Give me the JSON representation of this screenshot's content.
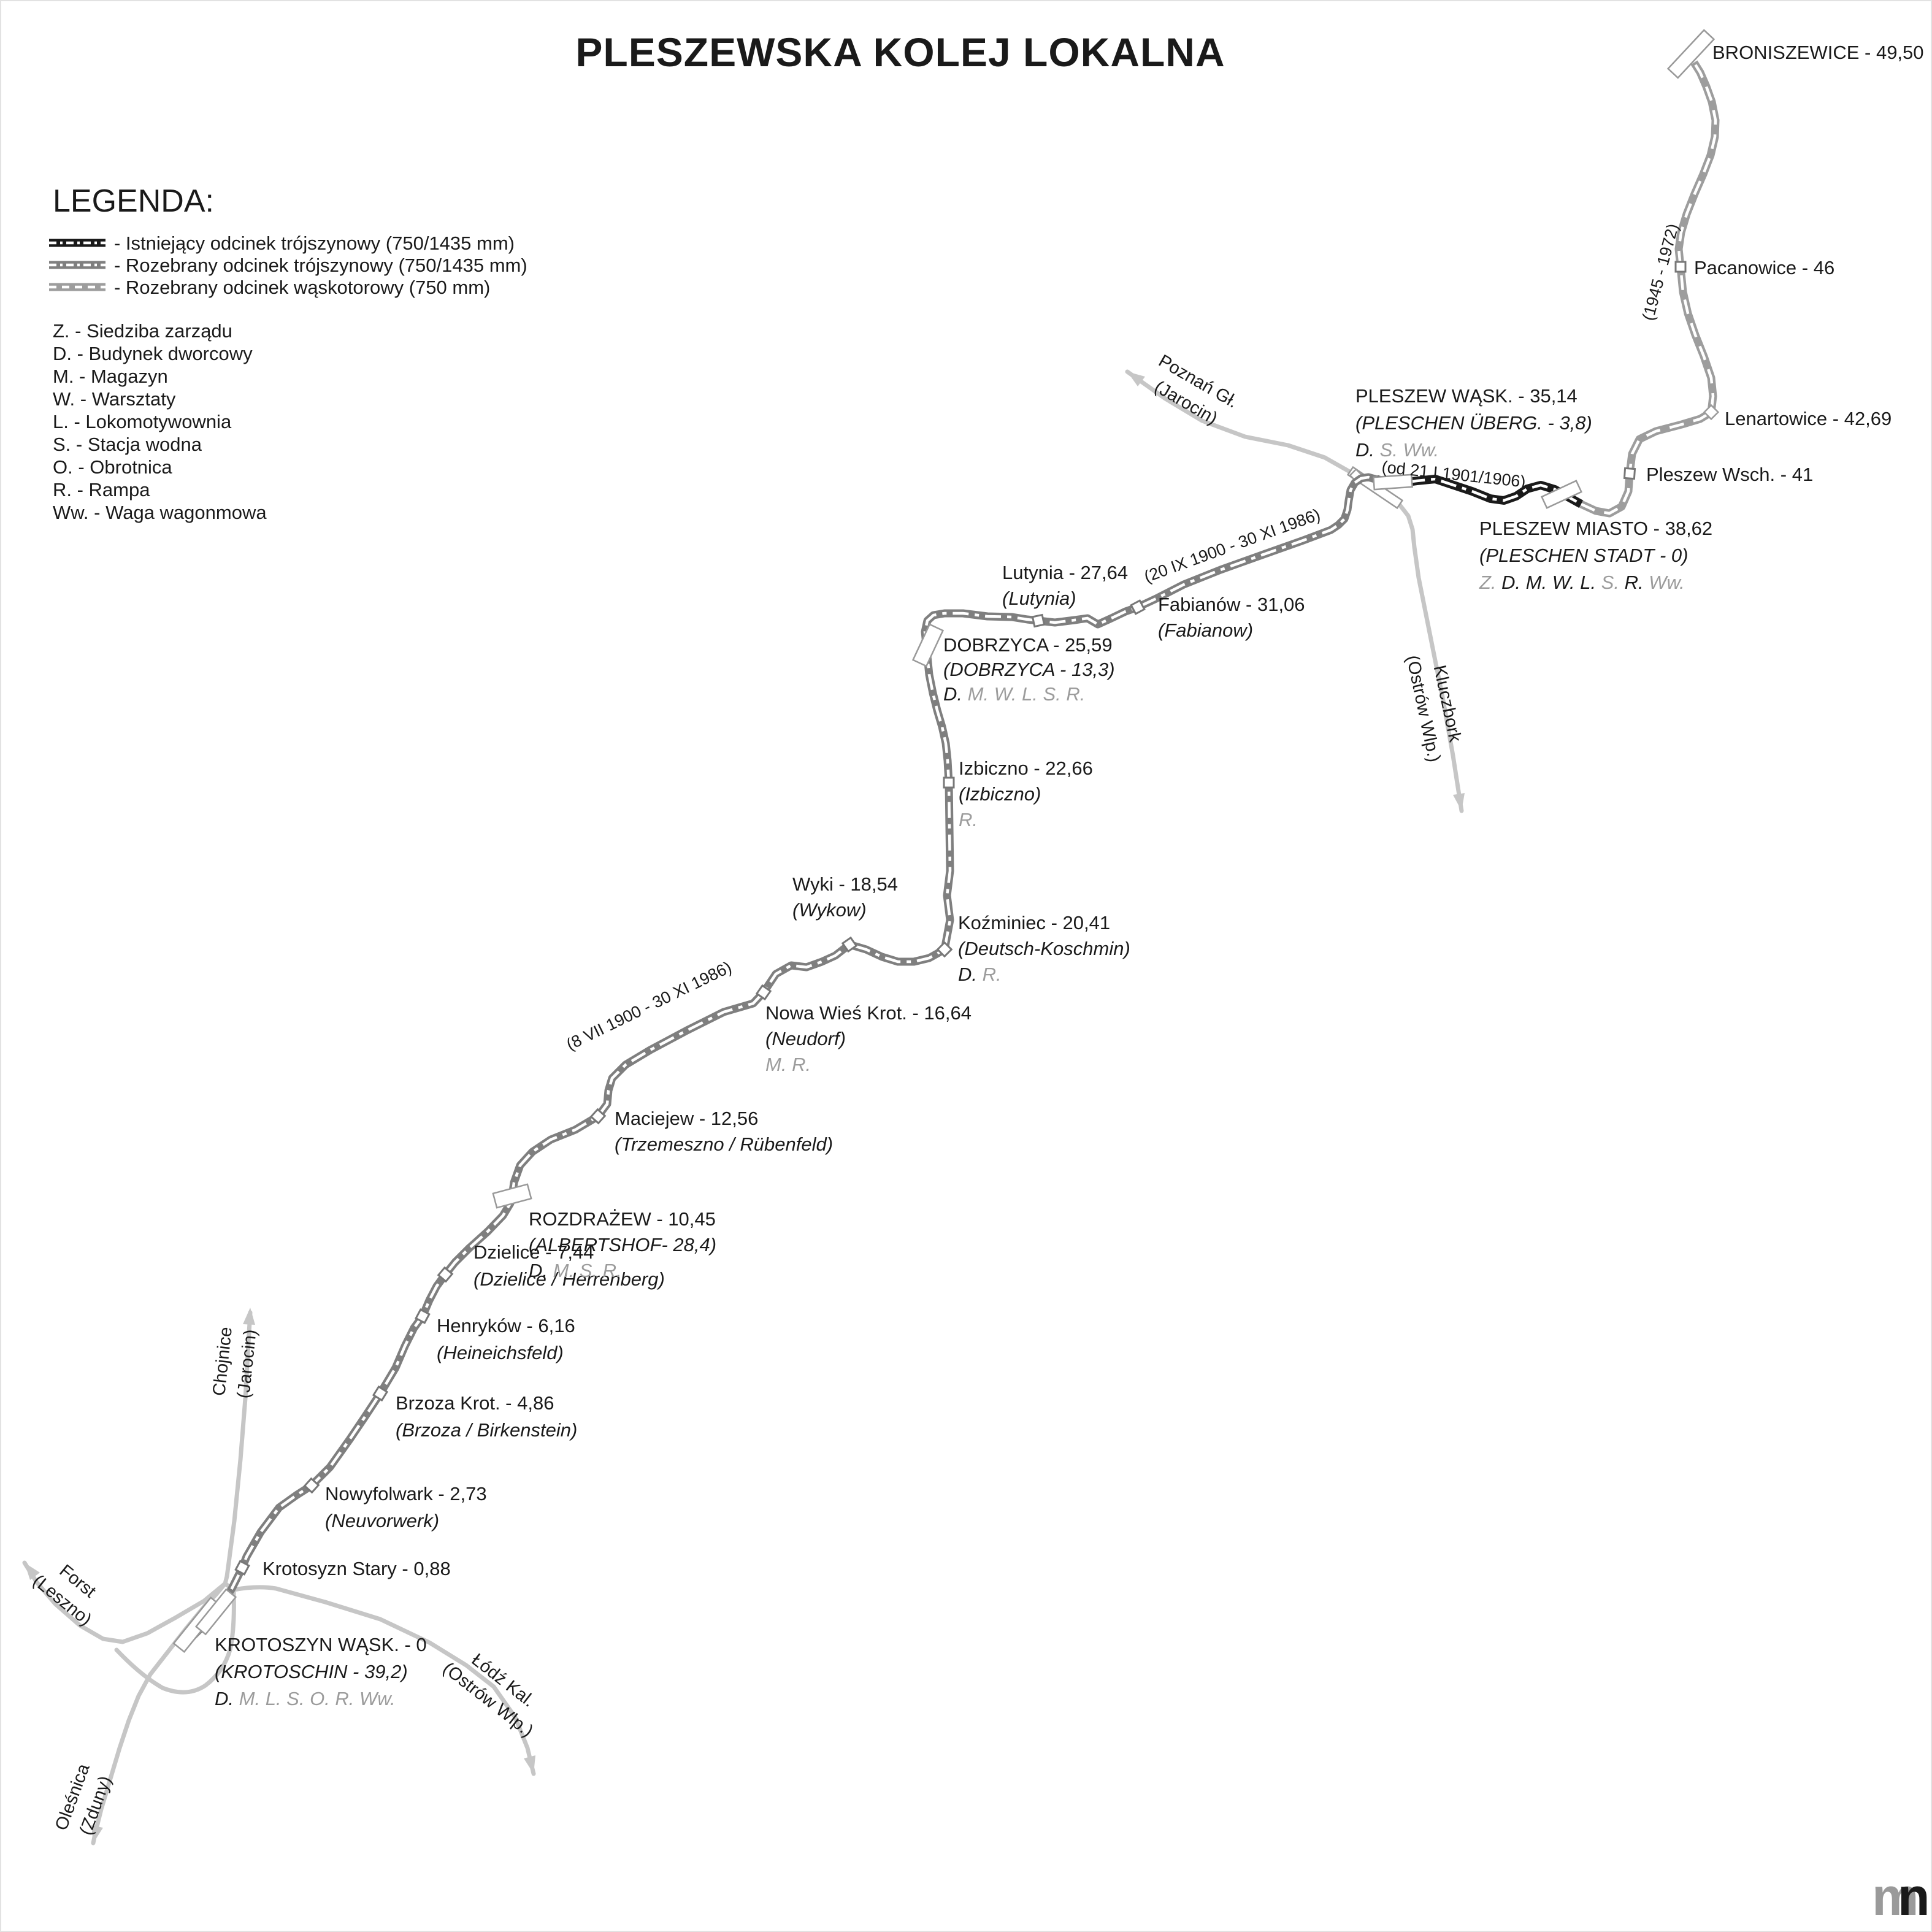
{
  "title": "PLESZEWSKA KOLEJ LOKALNA",
  "colors": {
    "track_existing": "#1a1a1a",
    "track_removed_triple": "#7f7f7f",
    "track_removed_narrow": "#9d9d9d",
    "pkp_line": "#c6c6c6",
    "text": "#1a1a1a",
    "facility_gray": "#9c9c9c"
  },
  "legend": {
    "heading": "LEGENDA:",
    "line_types": [
      {
        "label": "- Istniejący odcinek trójszynowy (750/1435 mm)",
        "style": "existing-triple"
      },
      {
        "label": "- Rozebrany odcinek trójszynowy (750/1435 mm)",
        "style": "removed-triple"
      },
      {
        "label": "- Rozebrany odcinek wąskotorowy (750 mm)",
        "style": "removed-narrow"
      }
    ],
    "abbreviations": [
      "Z. - Siedziba zarządu",
      "D. - Budynek dworcowy",
      "M. - Magazyn",
      "W. - Warsztaty",
      "L. - Lokomotywownia",
      "S. - Stacja wodna",
      "O. - Obrotnica",
      "R. - Rampa",
      "Ww. - Waga wagonmowa"
    ]
  },
  "line_dates": [
    "(od 21 I 1901/1906)",
    "(20 IX 1900 - 30 XI 1986)",
    "(8 VII 1900 - 30 XI 1986)",
    "(1945 - 1972)"
  ],
  "route_labels": [
    {
      "name": "Poznań Gł.",
      "sub": "(Jarocin)"
    },
    {
      "name": "Kluczbork",
      "sub": "(Ostrów Wlp.)"
    },
    {
      "name": "Chojnice",
      "sub": "(Jarocin)"
    },
    {
      "name": "Forst",
      "sub": "(Leszno)"
    },
    {
      "name": "Oleśnica",
      "sub": "(Zduny)"
    },
    {
      "name": "Łódź Kal.",
      "sub": "(Ostrów Wlp.)"
    }
  ],
  "stations": [
    {
      "name": "KROTOSZYN WĄSK. - 0",
      "german": "(KROTOSCHIN - 39,2)",
      "facilities": [
        {
          "t": "D.",
          "c": "b"
        },
        {
          "t": "M.",
          "c": "g"
        },
        {
          "t": "L.",
          "c": "g"
        },
        {
          "t": "S.",
          "c": "g"
        },
        {
          "t": "O.",
          "c": "g"
        },
        {
          "t": "R.",
          "c": "g"
        },
        {
          "t": "Ww.",
          "c": "g"
        }
      ]
    },
    {
      "name": "Krotosyzn Stary - 0,88"
    },
    {
      "name": "Nowyfolwark - 2,73",
      "german": "(Neuvorwerk)"
    },
    {
      "name": "Brzoza Krot. - 4,86",
      "german": "(Brzoza / Birkenstein)"
    },
    {
      "name": "Henryków - 6,16",
      "german": "(Heineichsfeld)"
    },
    {
      "name": "Dzielice - 7,44",
      "german": "(Dzielice / Herrenberg)"
    },
    {
      "name": "ROZDRAŻEW - 10,45",
      "german": "(ALBERTSHOF- 28,4)",
      "facilities": [
        {
          "t": "D.",
          "c": "b"
        },
        {
          "t": "M.",
          "c": "g"
        },
        {
          "t": "S.",
          "c": "g"
        },
        {
          "t": "R.",
          "c": "g"
        }
      ]
    },
    {
      "name": "Maciejew - 12,56",
      "german": "(Trzemeszno / Rübenfeld)"
    },
    {
      "name": "Nowa Wieś Krot. - 16,64",
      "german": "(Neudorf)",
      "facilities": [
        {
          "t": "M.",
          "c": "g"
        },
        {
          "t": "R.",
          "c": "g"
        }
      ]
    },
    {
      "name": "Wyki - 18,54",
      "german": "(Wykow)"
    },
    {
      "name": "Koźminiec - 20,41",
      "german": "(Deutsch-Koschmin)",
      "facilities": [
        {
          "t": "D.",
          "c": "b"
        },
        {
          "t": "R.",
          "c": "g"
        }
      ]
    },
    {
      "name": "Izbiczno - 22,66",
      "german": "(Izbiczno)",
      "facilities": [
        {
          "t": "R.",
          "c": "g"
        }
      ]
    },
    {
      "name": "DOBRZYCA - 25,59",
      "german": "(DOBRZYCA - 13,3)",
      "facilities": [
        {
          "t": "D.",
          "c": "b"
        },
        {
          "t": "M.",
          "c": "g"
        },
        {
          "t": "W.",
          "c": "g"
        },
        {
          "t": "L.",
          "c": "g"
        },
        {
          "t": "S.",
          "c": "g"
        },
        {
          "t": "R.",
          "c": "g"
        }
      ]
    },
    {
      "name": "Lutynia - 27,64",
      "german": "(Lutynia)"
    },
    {
      "name": "Fabianów - 31,06",
      "german": "(Fabianow)"
    },
    {
      "name": "PLESZEW WĄSK. - 35,14",
      "german": "(PLESCHEN ÜBERG. - 3,8)",
      "facilities": [
        {
          "t": "D.",
          "c": "b"
        },
        {
          "t": "S.",
          "c": "g"
        },
        {
          "t": "Ww.",
          "c": "g"
        }
      ]
    },
    {
      "name": "PLESZEW MIASTO - 38,62",
      "german": "(PLESCHEN STADT - 0)",
      "facilities": [
        {
          "t": "Z.",
          "c": "g"
        },
        {
          "t": "D.",
          "c": "b"
        },
        {
          "t": "M.",
          "c": "b"
        },
        {
          "t": "W.",
          "c": "b"
        },
        {
          "t": "L.",
          "c": "b"
        },
        {
          "t": "S.",
          "c": "g"
        },
        {
          "t": "R.",
          "c": "b"
        },
        {
          "t": "Ww.",
          "c": "g"
        }
      ]
    },
    {
      "name": "Pleszew Wsch. - 41"
    },
    {
      "name": "Lenartowice - 42,69"
    },
    {
      "name": "Pacanowice - 46"
    },
    {
      "name": "BRONISZEWICE - 49,50"
    }
  ],
  "logo": {
    "gray": "m",
    "black": "n"
  }
}
